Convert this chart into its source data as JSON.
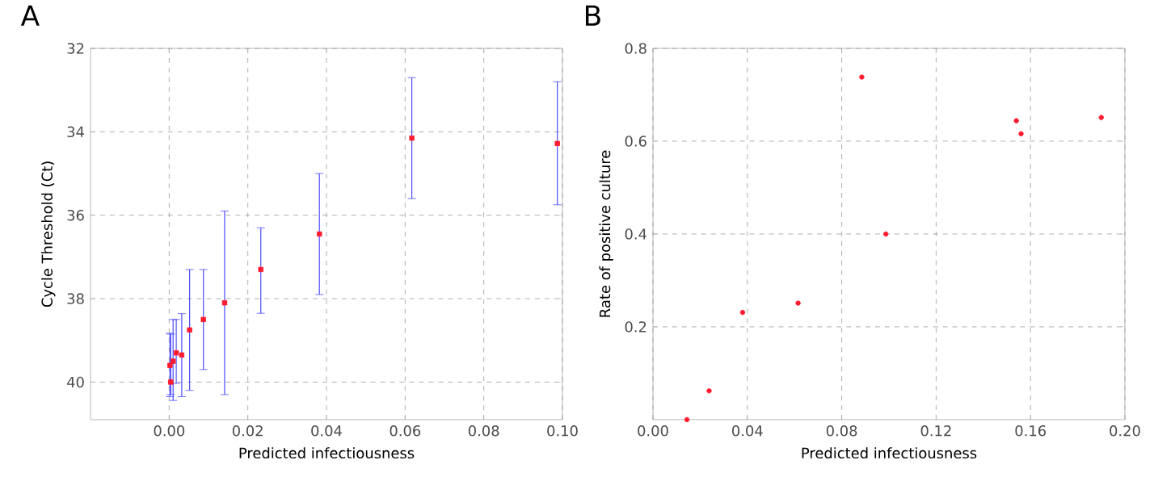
{
  "chart_data": [
    {
      "type": "scatter",
      "title": "A",
      "xlabel": "Predicted infectiousness",
      "ylabel": "Cycle Threshold (Ct)",
      "x": [
        0.0002,
        0.0004,
        0.001,
        0.0018,
        0.0032,
        0.0052,
        0.0087,
        0.0141,
        0.0233,
        0.0382,
        0.0617,
        0.0987
      ],
      "values": [
        39.6,
        40.0,
        39.5,
        39.3,
        39.35,
        38.75,
        38.5,
        38.1,
        37.3,
        36.45,
        34.15,
        34.28
      ],
      "errors": [
        [
          38.83,
          40.35
        ],
        [
          38.85,
          40.3
        ],
        [
          38.5,
          40.44
        ],
        [
          38.5,
          40.03
        ],
        [
          38.36,
          40.35
        ],
        [
          37.3,
          40.2
        ],
        [
          37.3,
          39.7
        ],
        [
          35.9,
          40.3
        ],
        [
          36.3,
          38.35
        ],
        [
          35.0,
          37.9
        ],
        [
          32.7,
          35.6
        ],
        [
          32.8,
          35.75
        ]
      ],
      "color": "#ff1a2e",
      "marker": "square",
      "grid": true,
      "xlim": [
        -0.02,
        0.1
      ],
      "xticks": [
        {
          "value": 0,
          "label": "0.00"
        },
        {
          "value": 0.02,
          "label": "0.02"
        },
        {
          "value": 0.04,
          "label": "0.04"
        },
        {
          "value": 0.06,
          "label": "0.06"
        },
        {
          "value": 0.08,
          "label": "0.08"
        },
        {
          "value": 0.1,
          "label": "0.10"
        }
      ],
      "ylim": [
        40.9,
        32
      ],
      "yticks": [
        32,
        34,
        36,
        38,
        40
      ]
    },
    {
      "type": "scatter",
      "title": "B",
      "xlabel": "Predicted infectiousness",
      "ylabel": "Rate of positive culture",
      "x": [
        0.0144,
        0.0238,
        0.038,
        0.0615,
        0.0885,
        0.0987,
        0.154,
        0.156,
        0.19
      ],
      "values": [
        0.0,
        0.062,
        0.231,
        0.251,
        0.738,
        0.4,
        0.644,
        0.616,
        0.651
      ],
      "color": "#ff1a2e",
      "marker": "circle",
      "grid": true,
      "xlim": [
        0,
        0.2
      ],
      "xticks": [
        {
          "value": 0,
          "label": "0.00"
        },
        {
          "value": 0.04,
          "label": "0.04"
        },
        {
          "value": 0.08,
          "label": "0.08"
        },
        {
          "value": 0.12,
          "label": "0.12"
        },
        {
          "value": 0.16,
          "label": "0.16"
        },
        {
          "value": 0.2,
          "label": "0.20"
        }
      ],
      "ylim": [
        0,
        0.8
      ],
      "yticks": [
        0.2,
        0.4,
        0.6,
        0.8
      ]
    }
  ]
}
